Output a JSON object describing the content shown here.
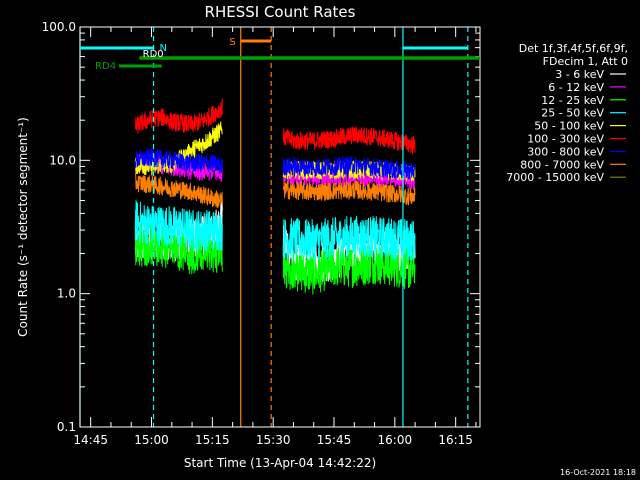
{
  "chart_data": {
    "type": "line",
    "title": "RHESSI Count Rates",
    "xlabel": "Start Time (13-Apr-04 14:42:22)",
    "ylabel": "Count Rate (s⁻¹ detector segment⁻¹)",
    "y_scale": "log",
    "ylim": [
      0.1,
      100.0
    ],
    "xlim": [
      "14:42:22",
      "16:21:00"
    ],
    "y_ticks": [
      "0.1",
      "1.0",
      "10.0",
      "100.0"
    ],
    "x_ticks": [
      "14:45",
      "15:00",
      "15:15",
      "15:30",
      "15:45",
      "16:00",
      "16:15"
    ],
    "timestamp": "16-Oct-2021 18:18",
    "legend": {
      "placement": "right",
      "header": [
        "Det 1f,3f,4f,5f,6f,9f,",
        "FDecim 1, Att 0"
      ]
    },
    "series": [
      {
        "name": "3 - 6 keV",
        "color": "#ffffff",
        "segments": [
          {
            "x": [
              "14:56:00",
              "15:00:00",
              "15:05:00",
              "15:10:00",
              "15:15:00",
              "15:17:30"
            ],
            "y": [
              2.4,
              2.6,
              2.5,
              2.6,
              2.7,
              3.5
            ]
          },
          {
            "x": [
              "15:32:30",
              "15:35:00",
              "15:40:00",
              "15:45:00",
              "15:50:00",
              "15:55:00",
              "16:00:00",
              "16:05:00"
            ],
            "y": [
              2.3,
              1.8,
              1.7,
              1.8,
              2.0,
              2.2,
              2.1,
              2.0
            ]
          }
        ]
      },
      {
        "name": "6 - 12 keV",
        "color": "#ff00ff",
        "segments": [
          {
            "x": [
              "14:56:00",
              "15:00:00",
              "15:05:00",
              "15:10:00",
              "15:15:00",
              "15:17:30"
            ],
            "y": [
              9.5,
              9.5,
              9.0,
              8.3,
              8.0,
              8.0
            ]
          },
          {
            "x": [
              "15:32:30",
              "15:40:00",
              "15:50:00",
              "16:00:00",
              "16:05:00"
            ],
            "y": [
              7.8,
              7.4,
              7.5,
              7.2,
              7.0
            ]
          }
        ]
      },
      {
        "name": "12 - 25 keV",
        "color": "#00ff00",
        "segments": [
          {
            "x": [
              "14:56:00",
              "15:00:00",
              "15:05:00",
              "15:10:00",
              "15:15:00",
              "15:17:30"
            ],
            "y": [
              2.3,
              2.3,
              2.2,
              2.0,
              2.0,
              2.1
            ]
          },
          {
            "x": [
              "15:32:30",
              "15:35:00",
              "15:40:00",
              "15:45:00",
              "15:50:00",
              "15:55:00",
              "16:00:00",
              "16:05:00"
            ],
            "y": [
              1.6,
              1.5,
              1.4,
              1.6,
              1.6,
              1.7,
              1.6,
              1.5
            ]
          }
        ]
      },
      {
        "name": "25 - 50 keV",
        "color": "#00ffff",
        "segments": [
          {
            "x": [
              "14:56:00",
              "15:00:00",
              "15:05:00",
              "15:10:00",
              "15:15:00",
              "15:17:30"
            ],
            "y": [
              3.5,
              3.3,
              3.2,
              3.0,
              3.0,
              3.0
            ]
          },
          {
            "x": [
              "15:32:30",
              "15:40:00",
              "15:50:00",
              "16:00:00",
              "16:05:00"
            ],
            "y": [
              2.6,
              2.5,
              2.7,
              2.6,
              2.5
            ]
          }
        ]
      },
      {
        "name": "50 - 100 keV",
        "color": "#ffff00",
        "segments": [
          {
            "x": [
              "14:56:00",
              "15:00:00",
              "15:05:00",
              "15:08:00",
              "15:10:00",
              "15:13:00",
              "15:15:00",
              "15:17:30"
            ],
            "y": [
              9.2,
              9.0,
              9.5,
              10.5,
              12.0,
              13.5,
              15.0,
              17.0
            ]
          },
          {
            "x": [
              "15:32:30",
              "15:40:00",
              "15:50:00",
              "16:00:00",
              "16:05:00"
            ],
            "y": [
              8.5,
              8.4,
              8.5,
              8.2,
              8.0
            ]
          }
        ]
      },
      {
        "name": "100 - 300 keV",
        "color": "#ff0000",
        "segments": [
          {
            "x": [
              "14:56:00",
              "15:00:00",
              "15:03:00",
              "15:05:00",
              "15:10:00",
              "15:13:00",
              "15:15:00",
              "15:17:30"
            ],
            "y": [
              18.0,
              20.5,
              21.0,
              19.5,
              18.5,
              20.0,
              22.0,
              25.0
            ]
          },
          {
            "x": [
              "15:32:30",
              "15:35:00",
              "15:40:00",
              "15:45:00",
              "15:50:00",
              "15:55:00",
              "16:00:00",
              "16:05:00"
            ],
            "y": [
              15.0,
              14.0,
              14.0,
              14.5,
              15.5,
              15.0,
              14.0,
              13.0
            ]
          }
        ]
      },
      {
        "name": "300 - 800 keV",
        "color": "#0000ff",
        "segments": [
          {
            "x": [
              "14:56:00",
              "15:00:00",
              "15:05:00",
              "15:10:00",
              "15:15:00",
              "15:17:30"
            ],
            "y": [
              10.0,
              10.5,
              10.0,
              9.5,
              9.5,
              9.0
            ]
          },
          {
            "x": [
              "15:32:30",
              "15:40:00",
              "15:50:00",
              "16:00:00",
              "16:05:00"
            ],
            "y": [
              9.0,
              8.8,
              9.2,
              8.5,
              8.3
            ]
          }
        ]
      },
      {
        "name": "800 - 7000 keV",
        "color": "#ff8000",
        "segments": [
          {
            "x": [
              "14:56:00",
              "15:00:00",
              "15:05:00",
              "15:10:00",
              "15:15:00",
              "15:17:30"
            ],
            "y": [
              6.8,
              6.6,
              6.2,
              5.8,
              5.2,
              5.0
            ]
          },
          {
            "x": [
              "15:32:30",
              "15:40:00",
              "15:50:00",
              "16:00:00",
              "16:05:00"
            ],
            "y": [
              6.0,
              5.8,
              6.0,
              5.6,
              5.3
            ]
          }
        ]
      },
      {
        "name": "7000 - 15000 keV",
        "color": "#808000",
        "segments": []
      }
    ],
    "markers": [
      {
        "label": "N",
        "color": "#00ffff"
      },
      {
        "label": "RD0",
        "color": "#ffffff"
      },
      {
        "label": "RD4",
        "color": "#00a000"
      },
      {
        "label": "S",
        "color": "#ff8000"
      }
    ],
    "intervals": {
      "night": [
        [
          "14:42:22",
          "15:00:30"
        ],
        [
          "16:02:00",
          "16:18:00"
        ]
      ],
      "rd0": [
        "14:52:00",
        "15:02:30"
      ],
      "rd4": [
        "14:57:00",
        "16:21:00"
      ],
      "saa": [
        "15:22:00",
        "15:29:30"
      ]
    },
    "vertical_lines": [
      {
        "time": "14:42:22",
        "color": "#00ffff",
        "style": "solid"
      },
      {
        "time": "15:00:30",
        "color": "#00ffff",
        "style": "dashed"
      },
      {
        "time": "15:22:00",
        "color": "#ff8000",
        "style": "solid"
      },
      {
        "time": "15:29:30",
        "color": "#ff8000",
        "style": "dashed"
      },
      {
        "time": "16:02:00",
        "color": "#00ffff",
        "style": "solid"
      },
      {
        "time": "16:18:00",
        "color": "#00ffff",
        "style": "dashed"
      }
    ]
  }
}
